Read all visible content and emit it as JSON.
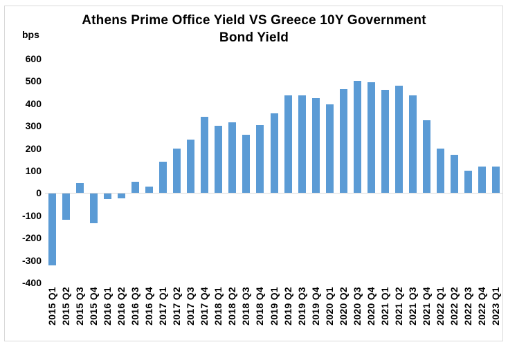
{
  "header": {
    "title_line1": "Athens Prime Office Yield VS Greece 10Y Government",
    "title_line2": "Bond Yield",
    "y_axis_unit": "bps"
  },
  "chart_data": {
    "type": "bar",
    "title": "Athens Prime Office Yield VS Greece 10Y Government Bond Yield",
    "ylabel": "bps",
    "xlabel": "",
    "ylim": [
      -400,
      600
    ],
    "yticks": [
      600,
      500,
      400,
      300,
      200,
      100,
      0,
      -100,
      -200,
      -300,
      -400
    ],
    "grid": false,
    "legend": "none",
    "bar_color": "#5b9bd5",
    "categories": [
      "2015 Q1",
      "2015 Q2",
      "2015 Q3",
      "2015 Q4",
      "2016 Q1",
      "2016 Q2",
      "2016 Q3",
      "2016 Q4",
      "2017 Q1",
      "2017 Q2",
      "2017 Q3",
      "2017 Q4",
      "2018 Q1",
      "2018 Q2",
      "2018 Q3",
      "2018 Q4",
      "2019 Q1",
      "2019 Q2",
      "2019 Q3",
      "2019 Q4",
      "2020 Q1",
      "2020 Q2",
      "2020 Q3",
      "2020 Q4",
      "2021 Q1",
      "2021 Q2",
      "2021 Q3",
      "2021 Q4",
      "2022 Q1",
      "2022 Q2",
      "2022 Q3",
      "2022 Q4",
      "2023 Q1"
    ],
    "values": [
      -320,
      -115,
      45,
      -130,
      -25,
      -20,
      50,
      30,
      140,
      200,
      240,
      340,
      300,
      315,
      260,
      305,
      355,
      435,
      435,
      425,
      395,
      465,
      500,
      495,
      460,
      480,
      435,
      325,
      200,
      170,
      100,
      120,
      120
    ]
  }
}
